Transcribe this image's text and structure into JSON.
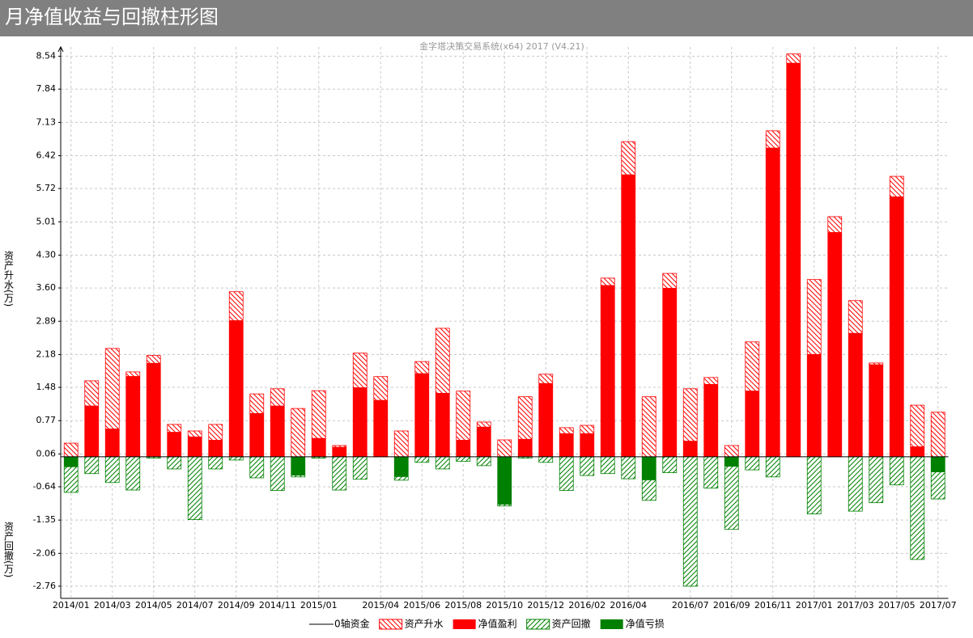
{
  "chart_data": {
    "type": "bar",
    "title": "月净值收益与回撤柱形图",
    "subtitle": "金字塔决策交易系统(x64) 2017 (V4.21)",
    "y_label_top": "资产升水(万)",
    "y_label_bottom": "资产回撤(万)",
    "baseline_name": "0轴资金",
    "categories": [
      "2014/01",
      null,
      "2014/03",
      null,
      "2014/05",
      null,
      "2014/07",
      null,
      "2014/09",
      null,
      "2014/11",
      null,
      "2015/01",
      null,
      null,
      "2015/04",
      null,
      "2015/06",
      null,
      "2015/08",
      null,
      "2015/10",
      null,
      "2015/12",
      null,
      "2016/02",
      null,
      "2016/04",
      null,
      null,
      "2016/07",
      null,
      "2016/09",
      null,
      "2016/11",
      null,
      "2017/01",
      null,
      "2017/03",
      null,
      "2017/05",
      null,
      "2017/07"
    ],
    "series": [
      {
        "name": "资产升水",
        "color": "#ff0000",
        "hatch": true,
        "values": [
          0.29,
          1.62,
          2.31,
          1.81,
          2.16,
          0.69,
          0.55,
          0.69,
          3.52,
          1.34,
          1.45,
          1.03,
          1.41,
          0.24,
          2.21,
          1.71,
          0.55,
          2.03,
          2.74,
          1.4,
          0.74,
          0.36,
          1.28,
          1.76,
          0.62,
          0.67,
          3.81,
          6.72,
          1.28,
          3.91,
          1.45,
          1.69,
          0.24,
          2.45,
          6.95,
          8.59,
          3.78,
          5.12,
          3.33,
          2.0,
          5.98,
          1.1,
          0.95
        ]
      },
      {
        "name": "净值盈利",
        "color": "#ff0000",
        "hatch": false,
        "values": [
          0,
          1.09,
          0.6,
          1.72,
          2.0,
          0.53,
          0.43,
          0.36,
          2.91,
          0.93,
          1.09,
          0,
          0.4,
          0.21,
          1.48,
          1.21,
          0,
          1.78,
          1.36,
          0.36,
          0.64,
          0,
          0.38,
          1.57,
          0.5,
          0.5,
          3.66,
          6.02,
          0,
          3.6,
          0.34,
          1.55,
          0,
          1.41,
          6.59,
          8.4,
          2.19,
          4.79,
          2.64,
          1.97,
          5.55,
          0.22,
          0
        ]
      },
      {
        "name": "资产回撤",
        "color": "#008000",
        "hatch": true,
        "values": [
          -0.76,
          -0.36,
          -0.55,
          -0.71,
          -0.03,
          -0.26,
          -1.34,
          -0.26,
          -0.07,
          -0.45,
          -0.72,
          -0.43,
          -0.03,
          -0.71,
          -0.48,
          0,
          -0.5,
          -0.12,
          -0.26,
          -0.1,
          -0.19,
          -1.05,
          -0.03,
          -0.12,
          -0.72,
          -0.4,
          -0.36,
          -0.47,
          -0.93,
          -0.34,
          -2.76,
          -0.67,
          -1.55,
          -0.28,
          -0.43,
          0,
          -1.22,
          0,
          -1.16,
          -0.98,
          -0.6,
          -2.19,
          -0.9
        ]
      },
      {
        "name": "净值亏损",
        "color": "#008000",
        "hatch": false,
        "values": [
          -0.22,
          0,
          0,
          0,
          0,
          0,
          0,
          0,
          0,
          0,
          0,
          -0.4,
          0,
          0,
          0,
          0,
          -0.43,
          0,
          0,
          0,
          0,
          -1.02,
          0,
          0,
          0,
          0,
          0,
          0,
          -0.5,
          0,
          0,
          0,
          -0.21,
          0,
          0,
          0,
          0,
          0,
          0,
          0,
          0,
          0,
          -0.33
        ]
      }
    ],
    "ylim": [
      -3.02,
      8.74
    ],
    "yticks": [
      8.54,
      7.84,
      7.13,
      6.42,
      5.72,
      5.01,
      {
        "value": 4.3,
        "label": "4.30"
      },
      {
        "value": 3.6,
        "label": "3.60"
      },
      2.89,
      2.18,
      1.48,
      0.77,
      0.06,
      -0.64,
      -1.35,
      -2.06,
      -2.76
    ],
    "grid": true
  }
}
